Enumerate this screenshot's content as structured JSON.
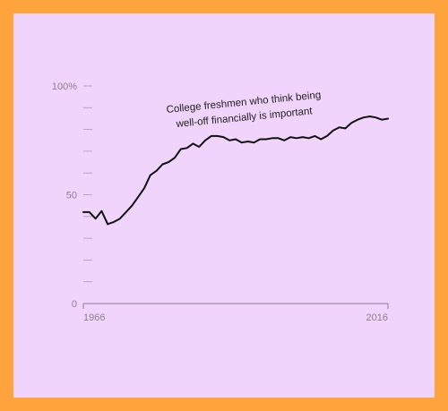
{
  "chart_data": {
    "type": "line",
    "title": "",
    "xlabel": "",
    "ylabel": "",
    "xlim": [
      1966,
      2016
    ],
    "ylim": [
      0,
      100
    ],
    "y_ticks": [
      {
        "value": 100,
        "label": "100%"
      },
      {
        "value": 50,
        "label": "50"
      },
      {
        "value": 0,
        "label": "0"
      }
    ],
    "y_minor_ticks": [
      90,
      80,
      70,
      60,
      40,
      30,
      20,
      10
    ],
    "x_ticks": [
      {
        "value": 1966,
        "label": "1966"
      },
      {
        "value": 2016,
        "label": "2016"
      }
    ],
    "grid": false,
    "line_color": "#111111",
    "annotation": {
      "lines": [
        "College freshmen who think being",
        "well-off financially is important"
      ]
    },
    "series": [
      {
        "name": "",
        "x": [
          1966,
          1967,
          1968,
          1969,
          1970,
          1971,
          1972,
          1973,
          1974,
          1975,
          1976,
          1977,
          1978,
          1979,
          1980,
          1981,
          1982,
          1983,
          1984,
          1985,
          1986,
          1987,
          1988,
          1989,
          1990,
          1991,
          1992,
          1993,
          1994,
          1995,
          1996,
          1997,
          1998,
          1999,
          2000,
          2001,
          2002,
          2003,
          2004,
          2005,
          2006,
          2007,
          2008,
          2009,
          2010,
          2011,
          2012,
          2013,
          2014,
          2015,
          2016
        ],
        "values": [
          42,
          42,
          39,
          42.5,
          36.5,
          37.5,
          39,
          42,
          45,
          49,
          53,
          59,
          61,
          64,
          65,
          67,
          71,
          71.5,
          73.5,
          72,
          75,
          77,
          77,
          76.5,
          75,
          75.5,
          74,
          74.5,
          74,
          75.5,
          75.5,
          76,
          76,
          75,
          76.5,
          76,
          76.5,
          76,
          77,
          75.5,
          77,
          79.5,
          81,
          80.5,
          83,
          84.5,
          85.5,
          86,
          85.5,
          84.5,
          85
        ]
      }
    ]
  }
}
